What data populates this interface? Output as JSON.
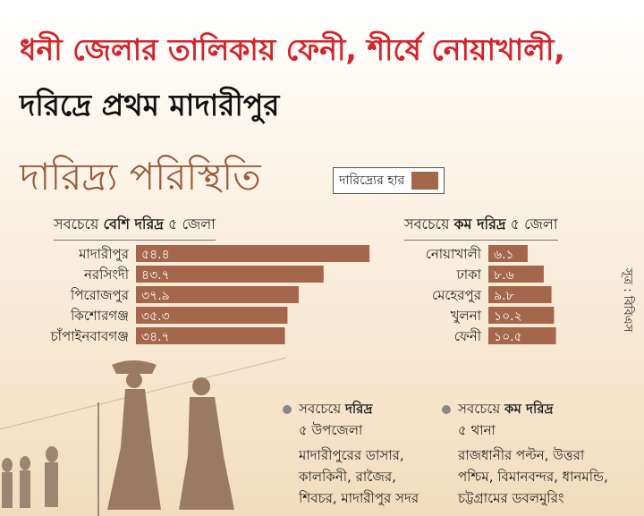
{
  "headline": {
    "line1": "ধনী জেলার তালিকায় ফেনী, শীর্ষে নোয়াখালী,",
    "line2": "দরিদ্রে প্রথম মাদারীপুর"
  },
  "section_title": "দারিদ্র্য পরিস্থিতি",
  "legend": {
    "label": "দারিদ্র্যের হার",
    "color": "#a4674b"
  },
  "left_group": {
    "prefix": "সবচেয়ে ",
    "bold": "বেশি দরিদ্র",
    "suffix": " ৫ জেলা"
  },
  "right_group": {
    "prefix": "সবচেয়ে ",
    "bold": "কম দরিদ্র",
    "suffix": " ৫ জেলা"
  },
  "source": "সূত্র : বিবিএস",
  "chart_data": [
    {
      "type": "bar",
      "orientation": "horizontal",
      "categories": [
        "মাদারীপুর",
        "নরসিংদী",
        "পিরোজপুর",
        "কিশোরগঞ্জ",
        "চাঁপাইনবাবগঞ্জ"
      ],
      "values": [
        54.4,
        43.7,
        37.9,
        35.3,
        34.7
      ],
      "value_labels": [
        "৫৪.৪",
        "৪৩.৭",
        "৩৭.৯",
        "৩৫.৩",
        "৩৪.৭"
      ],
      "color": "#a4674b"
    },
    {
      "type": "bar",
      "orientation": "horizontal",
      "categories": [
        "নোয়াখালী",
        "ঢাকা",
        "মেহেরপুর",
        "খুলনা",
        "ফেনী"
      ],
      "values": [
        6.1,
        8.6,
        9.8,
        10.2,
        10.5
      ],
      "value_labels": [
        "৬.১",
        "৮.৬",
        "৯.৮",
        "১০.২",
        "১০.৫"
      ],
      "color": "#a4674b"
    }
  ],
  "info_left": {
    "heading_prefix": "সবচেয়ে ",
    "heading_bold": "দরিদ্র",
    "subheading": "৫ উপজেলা",
    "lines": [
      "মাদারীপুরের ডাসার,",
      "কালকিনী, রাজৈর,",
      "শিবচর, মাদারীপুর সদর"
    ]
  },
  "info_right": {
    "heading_prefix": "সবচেয়ে ",
    "heading_bold": "কম দরিদ্র",
    "subheading": "৫ থানা",
    "lines": [
      "রাজধানীর পল্টন, উত্তরা",
      "পশ্চিম, বিমানবন্দর, ধানমন্ডি,",
      "চট্টগ্রামের ডবলমুরিং"
    ]
  }
}
